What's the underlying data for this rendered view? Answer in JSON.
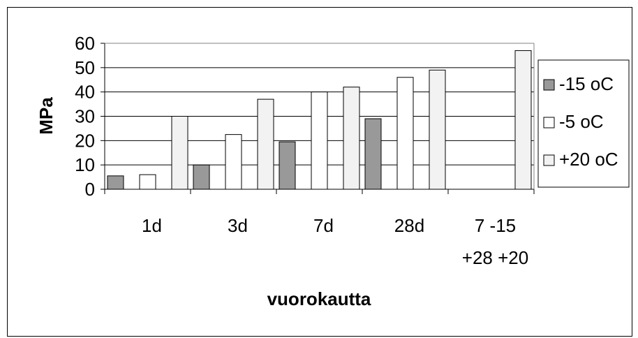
{
  "chart_data": {
    "type": "bar",
    "title": "",
    "xlabel": "vuorokautta",
    "ylabel": "MPa",
    "ylim": [
      0,
      60
    ],
    "yticks": [
      0,
      10,
      20,
      30,
      40,
      50,
      60
    ],
    "grid": true,
    "legend_position": "right",
    "categories": [
      [
        "1d"
      ],
      [
        "3d"
      ],
      [
        "7d"
      ],
      [
        "28d"
      ],
      [
        "7 -15",
        "+28 +20"
      ]
    ],
    "series": [
      {
        "name": "-15 oC",
        "color": "#999999",
        "values": [
          5.5,
          10,
          19.5,
          29,
          null
        ]
      },
      {
        "name": "-5 oC",
        "color": "#ffffff",
        "values": [
          6,
          22.5,
          40,
          46,
          null
        ]
      },
      {
        "name": "+20 oC",
        "color": "#f2f2f2",
        "values": [
          30,
          37,
          42,
          49,
          57
        ]
      }
    ]
  }
}
